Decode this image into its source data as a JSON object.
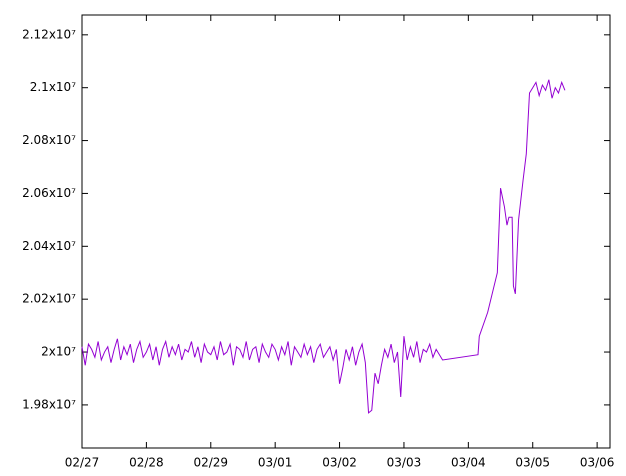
{
  "chart_data": {
    "type": "line",
    "color": "#9400d3",
    "xlim": [
      0,
      8.2
    ],
    "xticks": [
      {
        "value": 0,
        "label": "02/27"
      },
      {
        "value": 1,
        "label": "02/28"
      },
      {
        "value": 2,
        "label": "02/29"
      },
      {
        "value": 3,
        "label": "03/01"
      },
      {
        "value": 4,
        "label": "03/02"
      },
      {
        "value": 5,
        "label": "03/03"
      },
      {
        "value": 6,
        "label": "03/04"
      },
      {
        "value": 7,
        "label": "03/05"
      },
      {
        "value": 8,
        "label": "03/06"
      }
    ],
    "ylim": [
      19637000,
      21275000
    ],
    "yticks": [
      {
        "value": 19800000,
        "label": "1.98x10⁷"
      },
      {
        "value": 20000000,
        "label": "2x10⁷"
      },
      {
        "value": 20200000,
        "label": "2.02x10⁷"
      },
      {
        "value": 20400000,
        "label": "2.04x10⁷"
      },
      {
        "value": 20600000,
        "label": "2.06x10⁷"
      },
      {
        "value": 20800000,
        "label": "2.08x10⁷"
      },
      {
        "value": 21000000,
        "label": "2.1x10⁷"
      },
      {
        "value": 21200000,
        "label": "2.12x10⁷"
      }
    ],
    "x": [
      0,
      0.05,
      0.1,
      0.15,
      0.2,
      0.25,
      0.3,
      0.35,
      0.4,
      0.45,
      0.5,
      0.55,
      0.6,
      0.65,
      0.7,
      0.75,
      0.8,
      0.85,
      0.9,
      0.95,
      1,
      1.05,
      1.1,
      1.15,
      1.2,
      1.25,
      1.3,
      1.35,
      1.4,
      1.45,
      1.5,
      1.55,
      1.6,
      1.65,
      1.7,
      1.75,
      1.8,
      1.85,
      1.9,
      1.95,
      2,
      2.05,
      2.1,
      2.15,
      2.2,
      2.25,
      2.3,
      2.35,
      2.4,
      2.45,
      2.5,
      2.55,
      2.6,
      2.65,
      2.7,
      2.75,
      2.8,
      2.85,
      2.9,
      2.95,
      3,
      3.05,
      3.1,
      3.15,
      3.2,
      3.25,
      3.3,
      3.35,
      3.4,
      3.45,
      3.5,
      3.55,
      3.6,
      3.65,
      3.7,
      3.75,
      3.8,
      3.85,
      3.9,
      3.95,
      4,
      4.05,
      4.1,
      4.15,
      4.2,
      4.25,
      4.3,
      4.35,
      4.4,
      4.45,
      4.5,
      4.55,
      4.6,
      4.65,
      4.7,
      4.75,
      4.8,
      4.85,
      4.9,
      4.95,
      5,
      5.05,
      5.1,
      5.15,
      5.2,
      5.25,
      5.3,
      5.35,
      5.4,
      5.45,
      5.5,
      5.6,
      6.15,
      6.17,
      6.3,
      6.45,
      6.5,
      6.56,
      6.6,
      6.63,
      6.68,
      6.7,
      6.73,
      6.78,
      6.85,
      6.9,
      6.95,
      7,
      7.05,
      7.1,
      7.15,
      7.2,
      7.25,
      7.3,
      7.35,
      7.4,
      7.45,
      7.5
    ],
    "values": [
      20020000,
      19950000,
      20030000,
      20010000,
      19980000,
      20040000,
      19970000,
      20000000,
      20020000,
      19960000,
      20010000,
      20050000,
      19970000,
      20020000,
      19990000,
      20030000,
      19960000,
      20010000,
      20040000,
      19980000,
      20000000,
      20030000,
      19970000,
      20020000,
      19950000,
      20010000,
      20040000,
      19980000,
      20020000,
      19990000,
      20030000,
      19970000,
      20010000,
      20000000,
      20040000,
      19980000,
      20020000,
      19960000,
      20030000,
      20000000,
      19990000,
      20020000,
      19970000,
      20040000,
      19990000,
      20000000,
      20030000,
      19950000,
      20020000,
      20010000,
      19980000,
      20040000,
      19970000,
      20010000,
      20020000,
      19960000,
      20030000,
      20000000,
      19980000,
      20030000,
      20010000,
      19970000,
      20020000,
      19990000,
      20040000,
      19950000,
      20020000,
      20000000,
      19980000,
      20030000,
      19990000,
      20020000,
      19960000,
      20010000,
      20030000,
      19980000,
      20000000,
      20020000,
      19970000,
      20010000,
      19880000,
      19940000,
      20010000,
      19970000,
      20020000,
      19950000,
      20000000,
      20030000,
      19960000,
      19770000,
      19780000,
      19920000,
      19880000,
      19950000,
      20010000,
      19980000,
      20030000,
      19960000,
      20000000,
      19830000,
      20060000,
      19970000,
      20020000,
      19980000,
      20040000,
      19960000,
      20010000,
      20000000,
      20030000,
      19980000,
      20010000,
      19970000,
      19990000,
      20060000,
      20150000,
      20300000,
      20620000,
      20550000,
      20480000,
      20510000,
      20510000,
      20250000,
      20220000,
      20500000,
      20650000,
      20750000,
      20980000,
      21000000,
      21020000,
      20970000,
      21010000,
      20990000,
      21030000,
      20960000,
      21000000,
      20980000,
      21020000,
      20990000
    ]
  }
}
